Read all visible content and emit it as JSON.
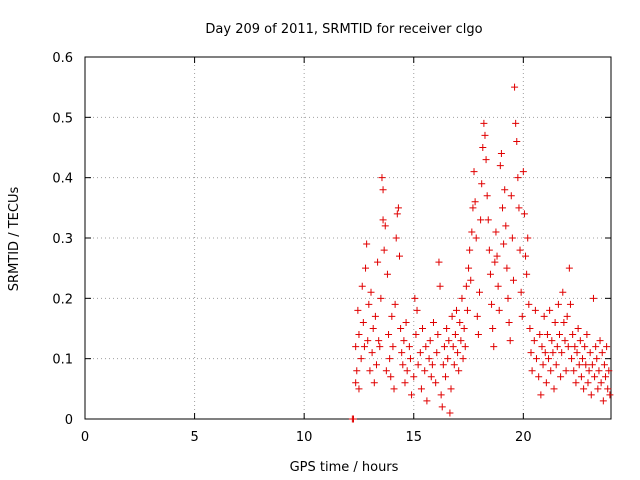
{
  "chart_data": {
    "type": "scatter",
    "title": "Day 209 of 2011, SRMTID for receiver clgo",
    "xlabel": "GPS time / hours",
    "ylabel": "SRMTID / TECUs",
    "xlim": [
      0,
      24
    ],
    "ylim": [
      0,
      0.6
    ],
    "x_ticks": [
      "0",
      "5",
      "10",
      "15",
      "20"
    ],
    "y_ticks": [
      "0",
      "0.1",
      "0.2",
      "0.3",
      "0.4",
      "0.5",
      "0.6"
    ],
    "grid": true,
    "marker": "+",
    "color": "#e00000",
    "points": [
      [
        12.2,
        0.0
      ],
      [
        12.25,
        0.0
      ],
      [
        12.35,
        0.06
      ],
      [
        12.35,
        0.12
      ],
      [
        12.4,
        0.08
      ],
      [
        12.45,
        0.18
      ],
      [
        12.5,
        0.14
      ],
      [
        12.5,
        0.05
      ],
      [
        12.6,
        0.1
      ],
      [
        12.65,
        0.22
      ],
      [
        12.7,
        0.16
      ],
      [
        12.75,
        0.12
      ],
      [
        12.8,
        0.25
      ],
      [
        12.85,
        0.29
      ],
      [
        12.9,
        0.13
      ],
      [
        12.95,
        0.19
      ],
      [
        13.0,
        0.08
      ],
      [
        13.05,
        0.21
      ],
      [
        13.1,
        0.11
      ],
      [
        13.15,
        0.15
      ],
      [
        13.2,
        0.06
      ],
      [
        13.25,
        0.17
      ],
      [
        13.3,
        0.09
      ],
      [
        13.35,
        0.26
      ],
      [
        13.4,
        0.13
      ],
      [
        13.45,
        0.12
      ],
      [
        13.5,
        0.2
      ],
      [
        13.55,
        0.4
      ],
      [
        13.6,
        0.38
      ],
      [
        13.6,
        0.33
      ],
      [
        13.65,
        0.28
      ],
      [
        13.7,
        0.32
      ],
      [
        13.75,
        0.08
      ],
      [
        13.8,
        0.24
      ],
      [
        13.85,
        0.14
      ],
      [
        13.9,
        0.1
      ],
      [
        13.95,
        0.07
      ],
      [
        14.0,
        0.17
      ],
      [
        14.05,
        0.12
      ],
      [
        14.1,
        0.05
      ],
      [
        14.15,
        0.19
      ],
      [
        14.2,
        0.3
      ],
      [
        14.25,
        0.34
      ],
      [
        14.3,
        0.35
      ],
      [
        14.35,
        0.27
      ],
      [
        14.4,
        0.15
      ],
      [
        14.45,
        0.11
      ],
      [
        14.5,
        0.09
      ],
      [
        14.55,
        0.13
      ],
      [
        14.6,
        0.06
      ],
      [
        14.65,
        0.16
      ],
      [
        14.7,
        0.08
      ],
      [
        14.8,
        0.12
      ],
      [
        14.85,
        0.1
      ],
      [
        14.9,
        0.04
      ],
      [
        15.0,
        0.07
      ],
      [
        15.05,
        0.2
      ],
      [
        15.1,
        0.14
      ],
      [
        15.15,
        0.18
      ],
      [
        15.2,
        0.09
      ],
      [
        15.3,
        0.11
      ],
      [
        15.35,
        0.05
      ],
      [
        15.4,
        0.15
      ],
      [
        15.5,
        0.08
      ],
      [
        15.55,
        0.12
      ],
      [
        15.6,
        0.03
      ],
      [
        15.7,
        0.1
      ],
      [
        15.75,
        0.13
      ],
      [
        15.8,
        0.07
      ],
      [
        15.85,
        0.09
      ],
      [
        15.9,
        0.16
      ],
      [
        16.0,
        0.06
      ],
      [
        16.05,
        0.11
      ],
      [
        16.1,
        0.14
      ],
      [
        16.15,
        0.26
      ],
      [
        16.2,
        0.22
      ],
      [
        16.25,
        0.04
      ],
      [
        16.3,
        0.02
      ],
      [
        16.35,
        0.09
      ],
      [
        16.4,
        0.12
      ],
      [
        16.45,
        0.07
      ],
      [
        16.5,
        0.15
      ],
      [
        16.55,
        0.1
      ],
      [
        16.6,
        0.13
      ],
      [
        16.65,
        0.01
      ],
      [
        16.7,
        0.05
      ],
      [
        16.75,
        0.17
      ],
      [
        16.8,
        0.12
      ],
      [
        16.85,
        0.09
      ],
      [
        16.9,
        0.14
      ],
      [
        16.95,
        0.18
      ],
      [
        17.0,
        0.11
      ],
      [
        17.05,
        0.08
      ],
      [
        17.1,
        0.16
      ],
      [
        17.15,
        0.13
      ],
      [
        17.2,
        0.2
      ],
      [
        17.25,
        0.1
      ],
      [
        17.3,
        0.15
      ],
      [
        17.35,
        0.12
      ],
      [
        17.4,
        0.22
      ],
      [
        17.45,
        0.18
      ],
      [
        17.5,
        0.25
      ],
      [
        17.55,
        0.28
      ],
      [
        17.6,
        0.23
      ],
      [
        17.65,
        0.31
      ],
      [
        17.7,
        0.35
      ],
      [
        17.75,
        0.41
      ],
      [
        17.8,
        0.36
      ],
      [
        17.85,
        0.3
      ],
      [
        17.9,
        0.17
      ],
      [
        17.95,
        0.14
      ],
      [
        18.0,
        0.21
      ],
      [
        18.05,
        0.33
      ],
      [
        18.1,
        0.39
      ],
      [
        18.15,
        0.45
      ],
      [
        18.2,
        0.49
      ],
      [
        18.25,
        0.47
      ],
      [
        18.3,
        0.43
      ],
      [
        18.35,
        0.37
      ],
      [
        18.4,
        0.33
      ],
      [
        18.45,
        0.28
      ],
      [
        18.5,
        0.24
      ],
      [
        18.55,
        0.19
      ],
      [
        18.6,
        0.15
      ],
      [
        18.65,
        0.12
      ],
      [
        18.7,
        0.26
      ],
      [
        18.75,
        0.31
      ],
      [
        18.8,
        0.27
      ],
      [
        18.85,
        0.22
      ],
      [
        18.9,
        0.18
      ],
      [
        18.95,
        0.42
      ],
      [
        19.0,
        0.44
      ],
      [
        19.05,
        0.35
      ],
      [
        19.1,
        0.29
      ],
      [
        19.15,
        0.38
      ],
      [
        19.2,
        0.32
      ],
      [
        19.25,
        0.25
      ],
      [
        19.3,
        0.2
      ],
      [
        19.35,
        0.16
      ],
      [
        19.4,
        0.13
      ],
      [
        19.45,
        0.37
      ],
      [
        19.5,
        0.3
      ],
      [
        19.55,
        0.23
      ],
      [
        19.6,
        0.55
      ],
      [
        19.65,
        0.49
      ],
      [
        19.7,
        0.46
      ],
      [
        19.75,
        0.4
      ],
      [
        19.8,
        0.35
      ],
      [
        19.85,
        0.28
      ],
      [
        19.9,
        0.21
      ],
      [
        19.95,
        0.17
      ],
      [
        20.0,
        0.41
      ],
      [
        20.05,
        0.34
      ],
      [
        20.1,
        0.27
      ],
      [
        20.15,
        0.24
      ],
      [
        20.2,
        0.3
      ],
      [
        20.25,
        0.19
      ],
      [
        20.3,
        0.15
      ],
      [
        20.35,
        0.11
      ],
      [
        20.4,
        0.08
      ],
      [
        20.5,
        0.13
      ],
      [
        20.55,
        0.18
      ],
      [
        20.6,
        0.1
      ],
      [
        20.7,
        0.07
      ],
      [
        20.75,
        0.14
      ],
      [
        20.8,
        0.04
      ],
      [
        20.85,
        0.12
      ],
      [
        20.9,
        0.09
      ],
      [
        20.95,
        0.17
      ],
      [
        21.0,
        0.11
      ],
      [
        21.05,
        0.06
      ],
      [
        21.1,
        0.14
      ],
      [
        21.15,
        0.1
      ],
      [
        21.2,
        0.18
      ],
      [
        21.25,
        0.08
      ],
      [
        21.3,
        0.13
      ],
      [
        21.35,
        0.11
      ],
      [
        21.4,
        0.05
      ],
      [
        21.45,
        0.16
      ],
      [
        21.5,
        0.09
      ],
      [
        21.55,
        0.12
      ],
      [
        21.6,
        0.19
      ],
      [
        21.65,
        0.14
      ],
      [
        21.7,
        0.07
      ],
      [
        21.75,
        0.11
      ],
      [
        21.8,
        0.21
      ],
      [
        21.85,
        0.16
      ],
      [
        21.9,
        0.13
      ],
      [
        21.95,
        0.08
      ],
      [
        22.0,
        0.17
      ],
      [
        22.05,
        0.12
      ],
      [
        22.1,
        0.25
      ],
      [
        22.15,
        0.19
      ],
      [
        22.2,
        0.1
      ],
      [
        22.25,
        0.14
      ],
      [
        22.3,
        0.08
      ],
      [
        22.35,
        0.12
      ],
      [
        22.4,
        0.06
      ],
      [
        22.45,
        0.11
      ],
      [
        22.5,
        0.15
      ],
      [
        22.55,
        0.09
      ],
      [
        22.6,
        0.13
      ],
      [
        22.65,
        0.07
      ],
      [
        22.7,
        0.1
      ],
      [
        22.75,
        0.05
      ],
      [
        22.8,
        0.12
      ],
      [
        22.85,
        0.09
      ],
      [
        22.9,
        0.14
      ],
      [
        22.95,
        0.06
      ],
      [
        23.0,
        0.08
      ],
      [
        23.05,
        0.11
      ],
      [
        23.1,
        0.04
      ],
      [
        23.15,
        0.09
      ],
      [
        23.2,
        0.2
      ],
      [
        23.25,
        0.07
      ],
      [
        23.3,
        0.12
      ],
      [
        23.35,
        0.1
      ],
      [
        23.4,
        0.05
      ],
      [
        23.45,
        0.08
      ],
      [
        23.5,
        0.13
      ],
      [
        23.55,
        0.06
      ],
      [
        23.6,
        0.11
      ],
      [
        23.65,
        0.03
      ],
      [
        23.7,
        0.09
      ],
      [
        23.75,
        0.07
      ],
      [
        23.8,
        0.12
      ],
      [
        23.85,
        0.05
      ],
      [
        23.9,
        0.08
      ],
      [
        23.95,
        0.04
      ]
    ]
  }
}
